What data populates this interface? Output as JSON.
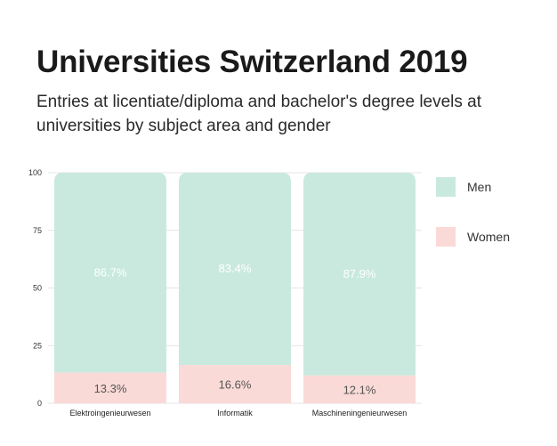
{
  "title": "Universities Switzerland 2019",
  "subtitle": "Entries at licentiate/diploma and bachelor's degree levels at universities by subject area and gender",
  "colors": {
    "men": "#c9e9df",
    "women": "#fadad7",
    "grid": "#e4e4e4"
  },
  "chart_data": {
    "type": "bar",
    "stacked": true,
    "categories": [
      "Elektroingenieurwesen",
      "Informatik",
      "Maschineningenieurwesen"
    ],
    "series": [
      {
        "name": "Women",
        "values": [
          13.3,
          16.6,
          12.1
        ],
        "labels": [
          "13.3%",
          "16.6%",
          "12.1%"
        ]
      },
      {
        "name": "Men",
        "values": [
          86.7,
          83.4,
          87.9
        ],
        "labels": [
          "86.7%",
          "83.4%",
          "87.9%"
        ]
      }
    ],
    "ylim": [
      0,
      100
    ],
    "yticks": [
      "0",
      "25",
      "50",
      "75",
      "100"
    ],
    "grid": true,
    "legend": "right"
  },
  "legend": [
    {
      "label": "Men",
      "color": "#c9e9df"
    },
    {
      "label": "Women",
      "color": "#fadad7"
    }
  ]
}
